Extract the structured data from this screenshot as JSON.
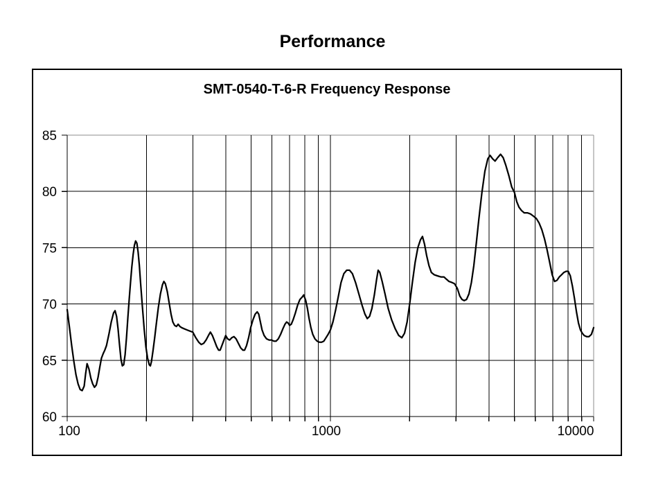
{
  "page": {
    "title": "Performance"
  },
  "chart_data": {
    "type": "line",
    "title": "SMT-0540-T-6-R Frequency Response",
    "xlabel": "",
    "ylabel": "",
    "legend": "none",
    "grid": true,
    "x_axis": {
      "scale": "log",
      "min": 100,
      "max": 10000,
      "labeled_ticks": [
        100,
        1000,
        10000
      ],
      "tick_labels": [
        "100",
        "1000",
        "10000"
      ],
      "gridlines": [
        100,
        200,
        300,
        400,
        500,
        600,
        700,
        800,
        900,
        1000,
        2000,
        3000,
        4000,
        5000,
        6000,
        7000,
        8000,
        9000,
        10000
      ]
    },
    "y_axis": {
      "min": 60,
      "max": 85,
      "ticks": [
        60,
        65,
        70,
        75,
        80,
        85
      ],
      "tick_labels": [
        "60",
        "65",
        "70",
        "75",
        "80",
        "85"
      ]
    },
    "colors": {
      "curve": "#000000",
      "gridline": "#000000",
      "plot_border": "#8c8c8c",
      "frame_border": "#000000",
      "text": "#000000",
      "background": "#ffffff"
    },
    "series": [
      {
        "points": [
          [
            100,
            69.5
          ],
          [
            102,
            67.9
          ],
          [
            104,
            66.3
          ],
          [
            106,
            64.9
          ],
          [
            108,
            63.7
          ],
          [
            110,
            62.9
          ],
          [
            112,
            62.4
          ],
          [
            114,
            62.3
          ],
          [
            116,
            62.7
          ],
          [
            117.5,
            63.8
          ],
          [
            119,
            64.7
          ],
          [
            121,
            64.2
          ],
          [
            123,
            63.4
          ],
          [
            125,
            62.9
          ],
          [
            127,
            62.6
          ],
          [
            129,
            62.8
          ],
          [
            131,
            63.5
          ],
          [
            133,
            64.4
          ],
          [
            135,
            65.2
          ],
          [
            137,
            65.6
          ],
          [
            139,
            65.9
          ],
          [
            141,
            66.3
          ],
          [
            144,
            67.3
          ],
          [
            147,
            68.4
          ],
          [
            150,
            69.2
          ],
          [
            152,
            69.4
          ],
          [
            154,
            68.9
          ],
          [
            156,
            67.8
          ],
          [
            158,
            66.4
          ],
          [
            160,
            65.1
          ],
          [
            162,
            64.5
          ],
          [
            164,
            64.6
          ],
          [
            166,
            65.5
          ],
          [
            168,
            67.0
          ],
          [
            170,
            68.8
          ],
          [
            172,
            70.4
          ],
          [
            174,
            71.9
          ],
          [
            176,
            73.3
          ],
          [
            178,
            74.4
          ],
          [
            180,
            75.2
          ],
          [
            182,
            75.6
          ],
          [
            184,
            75.4
          ],
          [
            186,
            74.6
          ],
          [
            188,
            73.4
          ],
          [
            190,
            71.9
          ],
          [
            193,
            69.8
          ],
          [
            196,
            67.8
          ],
          [
            199,
            66.2
          ],
          [
            202,
            65.2
          ],
          [
            205,
            64.6
          ],
          [
            207,
            64.5
          ],
          [
            209,
            64.9
          ],
          [
            212,
            65.9
          ],
          [
            215,
            67.0
          ],
          [
            218,
            68.2
          ],
          [
            222,
            69.7
          ],
          [
            226,
            70.9
          ],
          [
            230,
            71.7
          ],
          [
            233,
            72.0
          ],
          [
            236,
            71.8
          ],
          [
            240,
            71.1
          ],
          [
            244,
            70.1
          ],
          [
            248,
            69.1
          ],
          [
            252,
            68.4
          ],
          [
            256,
            68.1
          ],
          [
            260,
            68.0
          ],
          [
            264,
            68.2
          ],
          [
            268,
            68.0
          ],
          [
            272,
            67.9
          ],
          [
            278,
            67.8
          ],
          [
            285,
            67.7
          ],
          [
            292,
            67.6
          ],
          [
            300,
            67.5
          ],
          [
            308,
            67.0
          ],
          [
            316,
            66.6
          ],
          [
            323,
            66.4
          ],
          [
            330,
            66.5
          ],
          [
            337,
            66.8
          ],
          [
            344,
            67.2
          ],
          [
            350,
            67.5
          ],
          [
            356,
            67.2
          ],
          [
            363,
            66.7
          ],
          [
            370,
            66.2
          ],
          [
            376,
            65.9
          ],
          [
            381,
            65.9
          ],
          [
            387,
            66.3
          ],
          [
            394,
            66.8
          ],
          [
            400,
            67.2
          ],
          [
            407,
            66.9
          ],
          [
            414,
            66.8
          ],
          [
            422,
            67.0
          ],
          [
            430,
            67.1
          ],
          [
            438,
            66.9
          ],
          [
            447,
            66.5
          ],
          [
            456,
            66.1
          ],
          [
            465,
            65.9
          ],
          [
            472,
            65.9
          ],
          [
            480,
            66.3
          ],
          [
            489,
            67.0
          ],
          [
            498,
            67.9
          ],
          [
            508,
            68.6
          ],
          [
            518,
            69.1
          ],
          [
            527,
            69.3
          ],
          [
            534,
            69.1
          ],
          [
            542,
            68.4
          ],
          [
            550,
            67.7
          ],
          [
            560,
            67.2
          ],
          [
            572,
            66.9
          ],
          [
            585,
            66.8
          ],
          [
            598,
            66.8
          ],
          [
            610,
            66.7
          ],
          [
            622,
            66.7
          ],
          [
            634,
            66.9
          ],
          [
            647,
            67.3
          ],
          [
            660,
            67.8
          ],
          [
            672,
            68.2
          ],
          [
            682,
            68.4
          ],
          [
            691,
            68.3
          ],
          [
            700,
            68.1
          ],
          [
            710,
            68.2
          ],
          [
            722,
            68.6
          ],
          [
            736,
            69.2
          ],
          [
            751,
            69.9
          ],
          [
            766,
            70.4
          ],
          [
            780,
            70.6
          ],
          [
            792,
            70.8
          ],
          [
            806,
            70.3
          ],
          [
            818,
            69.6
          ],
          [
            830,
            68.7
          ],
          [
            843,
            67.9
          ],
          [
            857,
            67.3
          ],
          [
            873,
            66.9
          ],
          [
            890,
            66.7
          ],
          [
            908,
            66.6
          ],
          [
            926,
            66.6
          ],
          [
            944,
            66.7
          ],
          [
            962,
            67.0
          ],
          [
            980,
            67.3
          ],
          [
            1000,
            67.7
          ],
          [
            1022,
            68.4
          ],
          [
            1045,
            69.4
          ],
          [
            1070,
            70.6
          ],
          [
            1097,
            71.9
          ],
          [
            1125,
            72.7
          ],
          [
            1153,
            73.0
          ],
          [
            1182,
            73.0
          ],
          [
            1212,
            72.7
          ],
          [
            1246,
            71.9
          ],
          [
            1282,
            70.9
          ],
          [
            1318,
            69.9
          ],
          [
            1352,
            69.1
          ],
          [
            1380,
            68.7
          ],
          [
            1408,
            68.9
          ],
          [
            1438,
            69.6
          ],
          [
            1468,
            70.8
          ],
          [
            1498,
            72.2
          ],
          [
            1518,
            73.0
          ],
          [
            1540,
            72.8
          ],
          [
            1572,
            72.0
          ],
          [
            1612,
            70.9
          ],
          [
            1658,
            69.6
          ],
          [
            1708,
            68.6
          ],
          [
            1762,
            67.8
          ],
          [
            1818,
            67.2
          ],
          [
            1868,
            67.0
          ],
          [
            1912,
            67.4
          ],
          [
            1956,
            68.4
          ],
          [
            2000,
            70.0
          ],
          [
            2048,
            71.9
          ],
          [
            2098,
            73.7
          ],
          [
            2148,
            75.0
          ],
          [
            2198,
            75.7
          ],
          [
            2238,
            76.0
          ],
          [
            2278,
            75.3
          ],
          [
            2320,
            74.3
          ],
          [
            2368,
            73.4
          ],
          [
            2418,
            72.8
          ],
          [
            2478,
            72.6
          ],
          [
            2548,
            72.5
          ],
          [
            2628,
            72.4
          ],
          [
            2700,
            72.4
          ],
          [
            2760,
            72.2
          ],
          [
            2822,
            72.0
          ],
          [
            2900,
            71.9
          ],
          [
            2962,
            71.8
          ],
          [
            3032,
            71.4
          ],
          [
            3102,
            70.7
          ],
          [
            3162,
            70.4
          ],
          [
            3222,
            70.3
          ],
          [
            3290,
            70.4
          ],
          [
            3360,
            70.9
          ],
          [
            3432,
            71.9
          ],
          [
            3505,
            73.4
          ],
          [
            3582,
            75.4
          ],
          [
            3662,
            77.5
          ],
          [
            3762,
            79.9
          ],
          [
            3862,
            81.8
          ],
          [
            3962,
            82.9
          ],
          [
            4042,
            83.2
          ],
          [
            4130,
            82.9
          ],
          [
            4222,
            82.7
          ],
          [
            4318,
            83.0
          ],
          [
            4428,
            83.3
          ],
          [
            4532,
            83.0
          ],
          [
            4642,
            82.3
          ],
          [
            4762,
            81.4
          ],
          [
            4882,
            80.4
          ],
          [
            5002,
            79.9
          ],
          [
            5102,
            79.1
          ],
          [
            5205,
            78.6
          ],
          [
            5322,
            78.3
          ],
          [
            5450,
            78.1
          ],
          [
            5600,
            78.1
          ],
          [
            5755,
            78.0
          ],
          [
            5905,
            77.8
          ],
          [
            6055,
            77.6
          ],
          [
            6205,
            77.2
          ],
          [
            6355,
            76.6
          ],
          [
            6505,
            75.8
          ],
          [
            6655,
            74.8
          ],
          [
            6805,
            73.7
          ],
          [
            6955,
            72.6
          ],
          [
            7105,
            72.0
          ],
          [
            7255,
            72.1
          ],
          [
            7405,
            72.4
          ],
          [
            7555,
            72.6
          ],
          [
            7705,
            72.8
          ],
          [
            7855,
            72.9
          ],
          [
            8005,
            72.9
          ],
          [
            8155,
            72.5
          ],
          [
            8305,
            71.6
          ],
          [
            8455,
            70.5
          ],
          [
            8605,
            69.3
          ],
          [
            8755,
            68.3
          ],
          [
            8905,
            67.7
          ],
          [
            9055,
            67.4
          ],
          [
            9205,
            67.2
          ],
          [
            9405,
            67.1
          ],
          [
            9605,
            67.1
          ],
          [
            9805,
            67.3
          ],
          [
            10000,
            67.9
          ]
        ]
      }
    ]
  }
}
